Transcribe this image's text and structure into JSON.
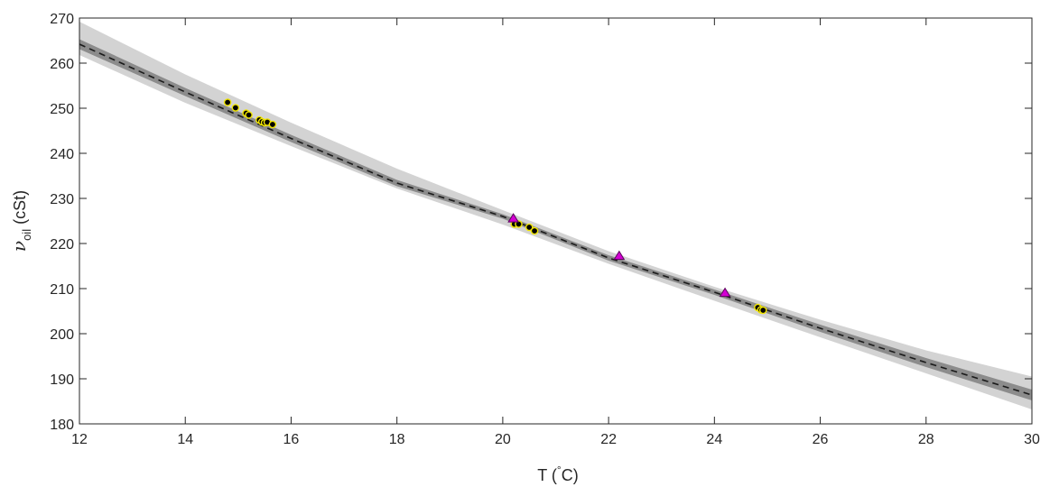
{
  "chart_data": {
    "type": "scatter",
    "title": "",
    "xlabel": {
      "prefix": "T (",
      "sup": "°",
      "suffix": "C)"
    },
    "ylabel": {
      "symbol": "ν",
      "sub": "oil",
      "suffix": " (cSt)"
    },
    "xlim": [
      12,
      30
    ],
    "ylim": [
      180,
      270
    ],
    "xticks": [
      12,
      14,
      16,
      18,
      20,
      22,
      24,
      26,
      28,
      30
    ],
    "yticks": [
      180,
      190,
      200,
      210,
      220,
      230,
      240,
      250,
      260,
      270
    ],
    "grid": false,
    "fit_line": {
      "style": "dashed",
      "color": "#1a1a1a",
      "x": [
        12,
        14,
        16,
        18,
        20,
        22,
        24,
        26,
        28,
        30
      ],
      "y": [
        264.2,
        253.6,
        243.3,
        233.4,
        226.0,
        216.8,
        209.2,
        201.2,
        193.6,
        186.4
      ]
    },
    "band_outer": {
      "color": "#d3d3d3",
      "x": [
        12,
        14,
        16,
        18,
        20,
        22,
        24,
        26,
        28,
        30
      ],
      "upper": [
        269.2,
        257.5,
        246.8,
        236.6,
        227.4,
        218.3,
        210.4,
        203.1,
        196.3,
        190.5
      ],
      "lower": [
        261.8,
        251.2,
        241.6,
        232.2,
        224.2,
        215.5,
        207.3,
        199.2,
        191.2,
        183.2
      ]
    },
    "band_inner": {
      "color": "#8c8c8c",
      "x": [
        12,
        14,
        16,
        18,
        20,
        22,
        24,
        26,
        28,
        30
      ],
      "upper": [
        265.3,
        254.5,
        244.1,
        234.1,
        226.5,
        217.4,
        209.8,
        202.0,
        194.6,
        187.6
      ],
      "lower": [
        263.1,
        252.7,
        242.5,
        232.7,
        225.5,
        216.2,
        208.6,
        200.4,
        192.6,
        185.2
      ]
    },
    "series": [
      {
        "marker": "circle",
        "fill": "#000000",
        "edge": "#f2e600",
        "x": [
          14.8,
          14.95,
          15.15,
          15.2,
          15.4,
          15.45,
          15.5,
          15.55,
          15.65,
          20.22,
          20.3,
          20.5,
          20.6,
          24.82,
          24.88,
          24.92
        ],
        "y": [
          251.3,
          250.1,
          248.9,
          248.5,
          247.4,
          247.0,
          246.8,
          246.9,
          246.4,
          224.3,
          224.3,
          223.6,
          222.8,
          205.8,
          205.3,
          205.2
        ]
      },
      {
        "marker": "triangle",
        "fill": "#d400d4",
        "edge": "#5c005c",
        "x": [
          20.2,
          22.2,
          24.2
        ],
        "y": [
          225.5,
          217.2,
          209.0
        ]
      }
    ]
  }
}
